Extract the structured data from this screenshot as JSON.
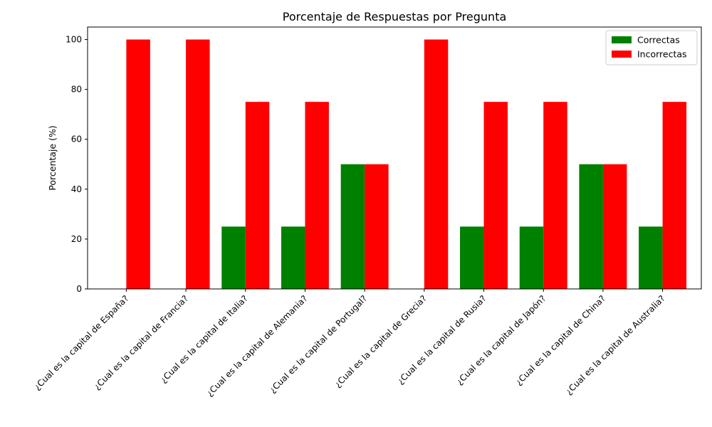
{
  "chart_data": {
    "type": "bar",
    "title": "Porcentaje de Respuestas por Pregunta",
    "xlabel": "",
    "ylabel": "Porcentaje (%)",
    "ylim": [
      0,
      105
    ],
    "yticks": [
      0,
      20,
      40,
      60,
      80,
      100
    ],
    "grid": false,
    "legend_position": "top-right",
    "categories": [
      "¿Cual es la capital de España?",
      "¿Cual es la capital de Francia?",
      "¿Cual es la capital de Italia?",
      "¿Cual es la capital de Alemania?",
      "¿Cual es la capital de Portugal?",
      "¿Cual es la capital de Grecia?",
      "¿Cual es la capital de Rusia?",
      "¿Cual es la capital de Japón?",
      "¿Cual es la capital de China?",
      "¿Cual es la capital de Australia?"
    ],
    "series": [
      {
        "name": "Correctas",
        "color": "#008000",
        "values": [
          0,
          0,
          25,
          25,
          50,
          0,
          25,
          25,
          50,
          25
        ]
      },
      {
        "name": "Incorrectas",
        "color": "#ff0000",
        "values": [
          100,
          100,
          75,
          75,
          50,
          100,
          75,
          75,
          50,
          75
        ]
      }
    ]
  }
}
